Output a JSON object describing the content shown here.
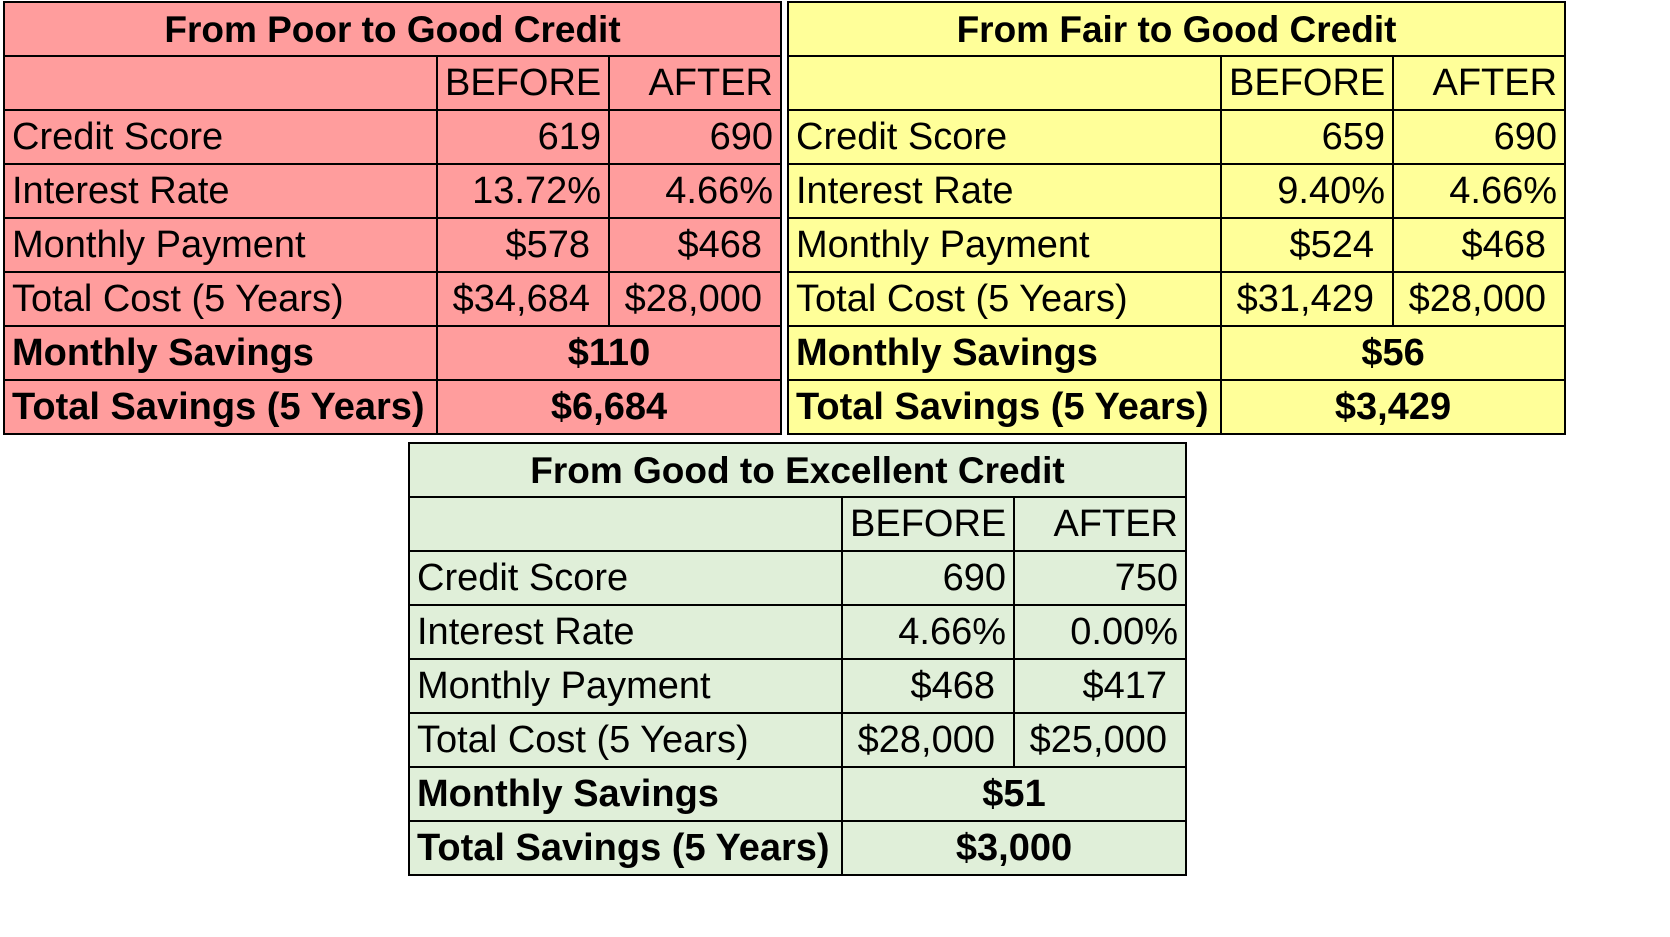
{
  "tables": [
    {
      "title": "From Poor to Good Credit",
      "before_label": "BEFORE",
      "after_label": "AFTER",
      "rows": [
        {
          "label": "Credit Score",
          "before": "619",
          "after": "690"
        },
        {
          "label": "Interest Rate",
          "before": "13.72%",
          "after": "4.66%"
        },
        {
          "label": "Monthly Payment",
          "before": "$578",
          "after": "$468"
        },
        {
          "label": "Total Cost (5 Years)",
          "before": "$34,684",
          "after": "$28,000"
        }
      ],
      "monthly_savings_label": "Monthly Savings",
      "monthly_savings": "$110",
      "total_savings_label": "Total Savings (5 Years)",
      "total_savings": "$6,684",
      "color": "#ff9d9d"
    },
    {
      "title": "From Fair to Good Credit",
      "before_label": "BEFORE",
      "after_label": "AFTER",
      "rows": [
        {
          "label": "Credit Score",
          "before": "659",
          "after": "690"
        },
        {
          "label": "Interest Rate",
          "before": "9.40%",
          "after": "4.66%"
        },
        {
          "label": "Monthly Payment",
          "before": "$524",
          "after": "$468"
        },
        {
          "label": "Total Cost (5 Years)",
          "before": "$31,429",
          "after": "$28,000"
        }
      ],
      "monthly_savings_label": "Monthly Savings",
      "monthly_savings": "$56",
      "total_savings_label": "Total Savings (5 Years)",
      "total_savings": "$3,429",
      "color": "#ffff99"
    },
    {
      "title": "From Good to Excellent Credit",
      "before_label": "BEFORE",
      "after_label": "AFTER",
      "rows": [
        {
          "label": "Credit Score",
          "before": "690",
          "after": "750"
        },
        {
          "label": "Interest Rate",
          "before": "4.66%",
          "after": "0.00%"
        },
        {
          "label": "Monthly Payment",
          "before": "$468",
          "after": "$417"
        },
        {
          "label": "Total Cost (5 Years)",
          "before": "$28,000",
          "after": "$25,000"
        }
      ],
      "monthly_savings_label": "Monthly Savings",
      "monthly_savings": "$51",
      "total_savings_label": "Total Savings (5 Years)",
      "total_savings": "$3,000",
      "color": "#e0efd9"
    }
  ]
}
